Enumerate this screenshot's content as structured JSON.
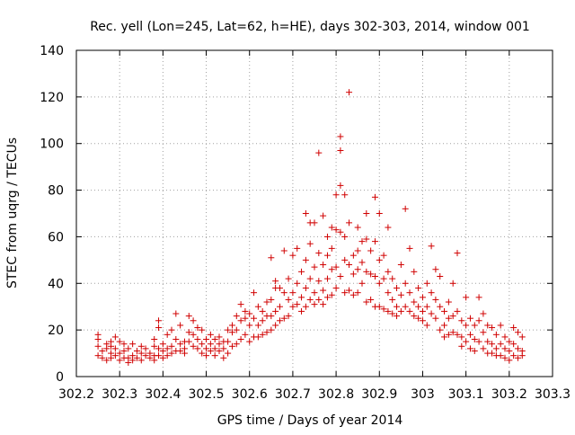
{
  "chart_data": {
    "type": "scatter",
    "title": "Rec. yell (Lon=245, Lat=62, h=HE), days 302-303, 2014, window 001",
    "xlabel": "GPS time / Days of year 2014",
    "ylabel": "STEC from uqrg / TECUs",
    "xlim": [
      302.2,
      303.3
    ],
    "ylim": [
      0,
      140
    ],
    "xticks": [
      "302.2",
      "302.3",
      "302.4",
      "302.5",
      "302.6",
      "302.7",
      "302.8",
      "302.9",
      "303",
      "303.1",
      "303.2",
      "303.3"
    ],
    "yticks": [
      "0",
      "20",
      "40",
      "60",
      "80",
      "100",
      "120",
      "140"
    ],
    "grid": true,
    "legend": "none",
    "marker": "plus",
    "color": "#d00000",
    "points": [
      [
        302.25,
        18
      ],
      [
        302.25,
        16
      ],
      [
        302.25,
        13
      ],
      [
        302.25,
        9
      ],
      [
        302.26,
        11
      ],
      [
        302.26,
        8
      ],
      [
        302.27,
        14
      ],
      [
        302.27,
        12
      ],
      [
        302.27,
        7
      ],
      [
        302.28,
        15
      ],
      [
        302.28,
        13
      ],
      [
        302.28,
        10
      ],
      [
        302.28,
        8
      ],
      [
        302.29,
        17
      ],
      [
        302.29,
        12
      ],
      [
        302.29,
        9
      ],
      [
        302.3,
        15
      ],
      [
        302.3,
        10
      ],
      [
        302.3,
        7
      ],
      [
        302.31,
        14
      ],
      [
        302.31,
        11
      ],
      [
        302.31,
        8
      ],
      [
        302.32,
        12
      ],
      [
        302.32,
        8
      ],
      [
        302.32,
        6
      ],
      [
        302.33,
        14
      ],
      [
        302.33,
        9
      ],
      [
        302.33,
        7
      ],
      [
        302.34,
        11
      ],
      [
        302.34,
        8
      ],
      [
        302.35,
        13
      ],
      [
        302.35,
        10
      ],
      [
        302.35,
        7
      ],
      [
        302.36,
        12
      ],
      [
        302.36,
        9
      ],
      [
        302.37,
        10
      ],
      [
        302.37,
        8
      ],
      [
        302.38,
        16
      ],
      [
        302.38,
        13
      ],
      [
        302.38,
        9
      ],
      [
        302.38,
        7
      ],
      [
        302.39,
        24
      ],
      [
        302.39,
        21
      ],
      [
        302.39,
        12
      ],
      [
        302.39,
        9
      ],
      [
        302.4,
        14
      ],
      [
        302.4,
        11
      ],
      [
        302.4,
        8
      ],
      [
        302.41,
        18
      ],
      [
        302.41,
        12
      ],
      [
        302.41,
        9
      ],
      [
        302.42,
        20
      ],
      [
        302.42,
        13
      ],
      [
        302.42,
        10
      ],
      [
        302.43,
        27
      ],
      [
        302.43,
        16
      ],
      [
        302.43,
        11
      ],
      [
        302.44,
        22
      ],
      [
        302.44,
        14
      ],
      [
        302.44,
        11
      ],
      [
        302.45,
        15
      ],
      [
        302.45,
        12
      ],
      [
        302.45,
        10
      ],
      [
        302.46,
        26
      ],
      [
        302.46,
        19
      ],
      [
        302.46,
        15
      ],
      [
        302.47,
        24
      ],
      [
        302.47,
        18
      ],
      [
        302.47,
        13
      ],
      [
        302.48,
        21
      ],
      [
        302.48,
        16
      ],
      [
        302.48,
        12
      ],
      [
        302.49,
        20
      ],
      [
        302.49,
        14
      ],
      [
        302.49,
        10
      ],
      [
        302.5,
        16
      ],
      [
        302.5,
        12
      ],
      [
        302.5,
        9
      ],
      [
        302.51,
        18
      ],
      [
        302.51,
        14
      ],
      [
        302.51,
        11
      ],
      [
        302.52,
        16
      ],
      [
        302.52,
        12
      ],
      [
        302.52,
        9
      ],
      [
        302.53,
        17
      ],
      [
        302.53,
        14
      ],
      [
        302.53,
        11
      ],
      [
        302.54,
        15
      ],
      [
        302.54,
        12
      ],
      [
        302.54,
        8
      ],
      [
        302.55,
        20
      ],
      [
        302.55,
        15
      ],
      [
        302.55,
        10
      ],
      [
        302.56,
        22
      ],
      [
        302.56,
        19
      ],
      [
        302.56,
        13
      ],
      [
        302.57,
        26
      ],
      [
        302.57,
        20
      ],
      [
        302.57,
        14
      ],
      [
        302.58,
        31
      ],
      [
        302.58,
        24
      ],
      [
        302.58,
        16
      ],
      [
        302.59,
        28
      ],
      [
        302.59,
        25
      ],
      [
        302.59,
        18
      ],
      [
        302.6,
        27
      ],
      [
        302.6,
        22
      ],
      [
        302.6,
        15
      ],
      [
        302.61,
        36
      ],
      [
        302.61,
        25
      ],
      [
        302.61,
        17
      ],
      [
        302.62,
        30
      ],
      [
        302.62,
        22
      ],
      [
        302.62,
        17
      ],
      [
        302.63,
        28
      ],
      [
        302.63,
        24
      ],
      [
        302.63,
        18
      ],
      [
        302.64,
        32
      ],
      [
        302.64,
        26
      ],
      [
        302.64,
        19
      ],
      [
        302.65,
        51
      ],
      [
        302.65,
        33
      ],
      [
        302.65,
        26
      ],
      [
        302.65,
        20
      ],
      [
        302.66,
        41
      ],
      [
        302.66,
        38
      ],
      [
        302.66,
        28
      ],
      [
        302.66,
        22
      ],
      [
        302.67,
        38
      ],
      [
        302.67,
        30
      ],
      [
        302.67,
        24
      ],
      [
        302.68,
        54
      ],
      [
        302.68,
        36
      ],
      [
        302.68,
        25
      ],
      [
        302.69,
        42
      ],
      [
        302.69,
        33
      ],
      [
        302.69,
        26
      ],
      [
        302.7,
        52
      ],
      [
        302.7,
        36
      ],
      [
        302.7,
        30
      ],
      [
        302.71,
        55
      ],
      [
        302.71,
        40
      ],
      [
        302.71,
        31
      ],
      [
        302.72,
        45
      ],
      [
        302.72,
        34
      ],
      [
        302.72,
        28
      ],
      [
        302.73,
        70
      ],
      [
        302.73,
        50
      ],
      [
        302.73,
        38
      ],
      [
        302.73,
        30
      ],
      [
        302.74,
        66
      ],
      [
        302.74,
        57
      ],
      [
        302.74,
        42
      ],
      [
        302.74,
        33
      ],
      [
        302.75,
        66
      ],
      [
        302.75,
        47
      ],
      [
        302.75,
        36
      ],
      [
        302.75,
        31
      ],
      [
        302.76,
        96
      ],
      [
        302.76,
        53
      ],
      [
        302.76,
        41
      ],
      [
        302.76,
        33
      ],
      [
        302.77,
        69
      ],
      [
        302.77,
        48
      ],
      [
        302.77,
        37
      ],
      [
        302.77,
        31
      ],
      [
        302.78,
        60
      ],
      [
        302.78,
        52
      ],
      [
        302.78,
        42
      ],
      [
        302.78,
        34
      ],
      [
        302.79,
        64
      ],
      [
        302.79,
        55
      ],
      [
        302.79,
        46
      ],
      [
        302.79,
        35
      ],
      [
        302.8,
        78
      ],
      [
        302.8,
        63
      ],
      [
        302.8,
        47
      ],
      [
        302.8,
        38
      ],
      [
        302.81,
        103
      ],
      [
        302.81,
        97
      ],
      [
        302.81,
        82
      ],
      [
        302.81,
        62
      ],
      [
        302.81,
        43
      ],
      [
        302.82,
        78
      ],
      [
        302.82,
        60
      ],
      [
        302.82,
        50
      ],
      [
        302.82,
        36
      ],
      [
        302.83,
        122
      ],
      [
        302.83,
        66
      ],
      [
        302.83,
        48
      ],
      [
        302.83,
        37
      ],
      [
        302.84,
        52
      ],
      [
        302.84,
        44
      ],
      [
        302.84,
        35
      ],
      [
        302.85,
        64
      ],
      [
        302.85,
        54
      ],
      [
        302.85,
        46
      ],
      [
        302.85,
        36
      ],
      [
        302.86,
        58
      ],
      [
        302.86,
        49
      ],
      [
        302.86,
        40
      ],
      [
        302.87,
        70
      ],
      [
        302.87,
        59
      ],
      [
        302.87,
        45
      ],
      [
        302.87,
        32
      ],
      [
        302.88,
        54
      ],
      [
        302.88,
        44
      ],
      [
        302.88,
        33
      ],
      [
        302.89,
        77
      ],
      [
        302.89,
        58
      ],
      [
        302.89,
        43
      ],
      [
        302.89,
        30
      ],
      [
        302.9,
        70
      ],
      [
        302.9,
        50
      ],
      [
        302.9,
        40
      ],
      [
        302.9,
        30
      ],
      [
        302.91,
        52
      ],
      [
        302.91,
        42
      ],
      [
        302.91,
        29
      ],
      [
        302.92,
        64
      ],
      [
        302.92,
        45
      ],
      [
        302.92,
        36
      ],
      [
        302.92,
        28
      ],
      [
        302.93,
        42
      ],
      [
        302.93,
        33
      ],
      [
        302.93,
        27
      ],
      [
        302.94,
        38
      ],
      [
        302.94,
        30
      ],
      [
        302.94,
        26
      ],
      [
        302.95,
        48
      ],
      [
        302.95,
        35
      ],
      [
        302.95,
        28
      ],
      [
        302.96,
        72
      ],
      [
        302.96,
        40
      ],
      [
        302.96,
        30
      ],
      [
        302.97,
        55
      ],
      [
        302.97,
        36
      ],
      [
        302.97,
        28
      ],
      [
        302.98,
        45
      ],
      [
        302.98,
        32
      ],
      [
        302.98,
        26
      ],
      [
        302.99,
        38
      ],
      [
        302.99,
        30
      ],
      [
        302.99,
        25
      ],
      [
        303.0,
        34
      ],
      [
        303.0,
        28
      ],
      [
        303.0,
        24
      ],
      [
        303.01,
        40
      ],
      [
        303.01,
        30
      ],
      [
        303.01,
        22
      ],
      [
        303.02,
        56
      ],
      [
        303.02,
        36
      ],
      [
        303.02,
        27
      ],
      [
        303.03,
        46
      ],
      [
        303.03,
        33
      ],
      [
        303.03,
        25
      ],
      [
        303.04,
        43
      ],
      [
        303.04,
        30
      ],
      [
        303.04,
        20
      ],
      [
        303.05,
        28
      ],
      [
        303.05,
        22
      ],
      [
        303.05,
        17
      ],
      [
        303.06,
        32
      ],
      [
        303.06,
        25
      ],
      [
        303.06,
        18
      ],
      [
        303.07,
        40
      ],
      [
        303.07,
        26
      ],
      [
        303.07,
        19
      ],
      [
        303.08,
        53
      ],
      [
        303.08,
        28
      ],
      [
        303.08,
        18
      ],
      [
        303.09,
        24
      ],
      [
        303.09,
        17
      ],
      [
        303.09,
        13
      ],
      [
        303.1,
        34
      ],
      [
        303.1,
        22
      ],
      [
        303.1,
        15
      ],
      [
        303.11,
        25
      ],
      [
        303.11,
        18
      ],
      [
        303.11,
        12
      ],
      [
        303.12,
        22
      ],
      [
        303.12,
        16
      ],
      [
        303.12,
        11
      ],
      [
        303.13,
        34
      ],
      [
        303.13,
        24
      ],
      [
        303.13,
        15
      ],
      [
        303.14,
        27
      ],
      [
        303.14,
        19
      ],
      [
        303.14,
        12
      ],
      [
        303.15,
        22
      ],
      [
        303.15,
        15
      ],
      [
        303.15,
        10
      ],
      [
        303.16,
        21
      ],
      [
        303.16,
        14
      ],
      [
        303.16,
        10
      ],
      [
        303.17,
        18
      ],
      [
        303.17,
        12
      ],
      [
        303.17,
        9
      ],
      [
        303.18,
        22
      ],
      [
        303.18,
        14
      ],
      [
        303.18,
        9
      ],
      [
        303.19,
        17
      ],
      [
        303.19,
        12
      ],
      [
        303.19,
        8
      ],
      [
        303.2,
        15
      ],
      [
        303.2,
        11
      ],
      [
        303.2,
        7
      ],
      [
        303.21,
        21
      ],
      [
        303.21,
        14
      ],
      [
        303.21,
        9
      ],
      [
        303.22,
        19
      ],
      [
        303.22,
        12
      ],
      [
        303.22,
        8
      ],
      [
        303.23,
        17
      ],
      [
        303.23,
        11
      ],
      [
        303.23,
        9
      ]
    ]
  }
}
